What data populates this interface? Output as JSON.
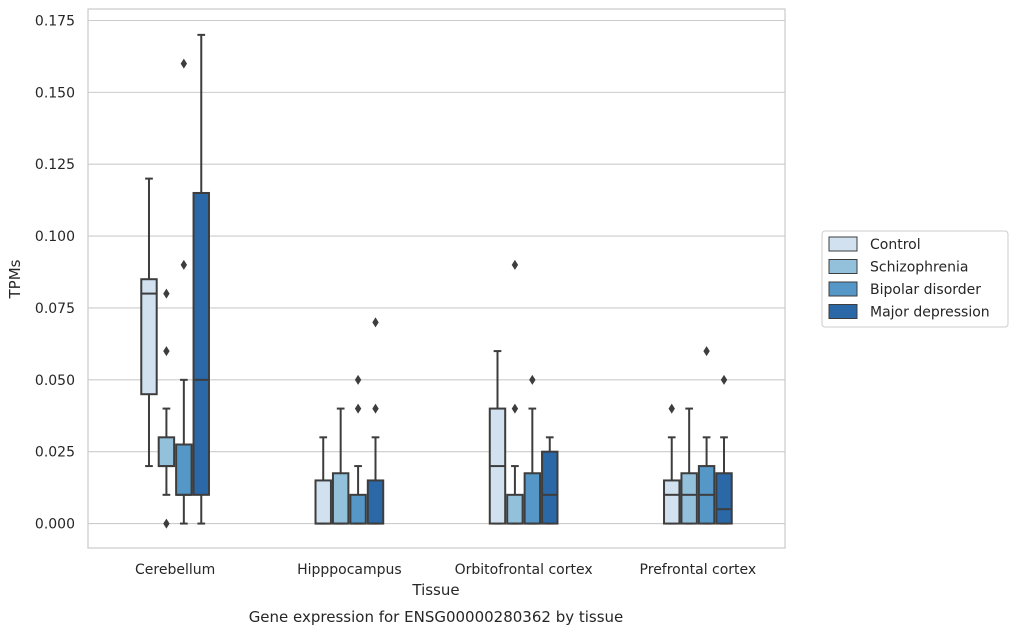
{
  "chart_data": {
    "type": "box",
    "title": "Gene expression for ENSG00000280362 by tissue",
    "xlabel": "Tissue",
    "ylabel": "TPMs",
    "ylim": [
      -0.0085,
      0.179
    ],
    "yticks": [
      "0.000",
      "0.025",
      "0.050",
      "0.075",
      "0.100",
      "0.125",
      "0.150",
      "0.175"
    ],
    "grid": true,
    "legend_position": "right",
    "categories": [
      "Cerebellum",
      "Hipppocampus",
      "Orbitofrontal cortex",
      "Prefrontal cortex"
    ],
    "series": [
      {
        "name": "Control",
        "color": "#d1e1f0",
        "boxes": [
          {
            "whisker_low": 0.02,
            "q1": 0.045,
            "median": 0.08,
            "q3": 0.085,
            "whisker_high": 0.12,
            "outliers": []
          },
          {
            "whisker_low": 0.0,
            "q1": 0.0,
            "median": 0.0,
            "q3": 0.015,
            "whisker_high": 0.03,
            "outliers": []
          },
          {
            "whisker_low": 0.0,
            "q1": 0.0,
            "median": 0.02,
            "q3": 0.04,
            "whisker_high": 0.06,
            "outliers": []
          },
          {
            "whisker_low": 0.0,
            "q1": 0.0,
            "median": 0.01,
            "q3": 0.015,
            "whisker_high": 0.03,
            "outliers": [
              0.04
            ]
          }
        ]
      },
      {
        "name": "Schizophrenia",
        "color": "#93c1dc",
        "boxes": [
          {
            "whisker_low": 0.01,
            "q1": 0.02,
            "median": 0.02,
            "q3": 0.03,
            "whisker_high": 0.04,
            "outliers": [
              0.0,
              0.06,
              0.08
            ]
          },
          {
            "whisker_low": 0.0,
            "q1": 0.0,
            "median": 0.0,
            "q3": 0.0175,
            "whisker_high": 0.04,
            "outliers": []
          },
          {
            "whisker_low": 0.0,
            "q1": 0.0,
            "median": 0.0,
            "q3": 0.01,
            "whisker_high": 0.02,
            "outliers": [
              0.04,
              0.09
            ]
          },
          {
            "whisker_low": 0.0,
            "q1": 0.0,
            "median": 0.01,
            "q3": 0.0175,
            "whisker_high": 0.04,
            "outliers": []
          }
        ]
      },
      {
        "name": "Bipolar disorder",
        "color": "#5598c7",
        "boxes": [
          {
            "whisker_low": 0.0,
            "q1": 0.01,
            "median": 0.01,
            "q3": 0.0275,
            "whisker_high": 0.05,
            "outliers": [
              0.09,
              0.16
            ]
          },
          {
            "whisker_low": 0.0,
            "q1": 0.0,
            "median": 0.0,
            "q3": 0.01,
            "whisker_high": 0.02,
            "outliers": [
              0.04,
              0.05
            ]
          },
          {
            "whisker_low": 0.0,
            "q1": 0.0,
            "median": 0.0,
            "q3": 0.0175,
            "whisker_high": 0.04,
            "outliers": [
              0.05
            ]
          },
          {
            "whisker_low": 0.0,
            "q1": 0.0,
            "median": 0.01,
            "q3": 0.02,
            "whisker_high": 0.03,
            "outliers": [
              0.06
            ]
          }
        ]
      },
      {
        "name": "Major depression",
        "color": "#2a68a8",
        "boxes": [
          {
            "whisker_low": 0.0,
            "q1": 0.01,
            "median": 0.05,
            "q3": 0.115,
            "whisker_high": 0.17,
            "outliers": []
          },
          {
            "whisker_low": 0.0,
            "q1": 0.0,
            "median": 0.0,
            "q3": 0.015,
            "whisker_high": 0.03,
            "outliers": [
              0.04,
              0.07
            ]
          },
          {
            "whisker_low": 0.0,
            "q1": 0.0,
            "median": 0.01,
            "q3": 0.025,
            "whisker_high": 0.03,
            "outliers": []
          },
          {
            "whisker_low": 0.0,
            "q1": 0.0,
            "median": 0.005,
            "q3": 0.0175,
            "whisker_high": 0.03,
            "outliers": [
              0.05
            ]
          }
        ]
      }
    ]
  }
}
